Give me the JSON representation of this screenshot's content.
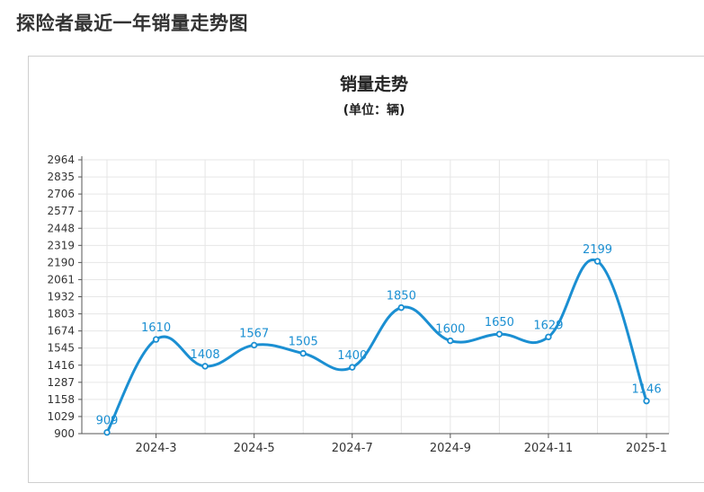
{
  "page": {
    "title": "探险者最近一年销量走势图"
  },
  "chart_data": {
    "type": "line",
    "title": "销量走势",
    "subtitle": "(单位：辆)",
    "x": [
      "2024-2",
      "2024-3",
      "2024-4",
      "2024-5",
      "2024-6",
      "2024-7",
      "2024-8",
      "2024-9",
      "2024-10",
      "2024-11",
      "2024-12",
      "2025-1"
    ],
    "x_tick_labels": [
      "2024-3",
      "2024-5",
      "2024-7",
      "2024-9",
      "2024-11",
      "2025-1"
    ],
    "series": [
      {
        "values": [
          909,
          1610,
          1408,
          1567,
          1505,
          1400,
          1850,
          1600,
          1650,
          1629,
          2199,
          1146
        ]
      }
    ],
    "y_ticks": [
      900,
      1029,
      1158,
      1287,
      1416,
      1545,
      1674,
      1803,
      1932,
      2061,
      2190,
      2319,
      2448,
      2577,
      2706,
      2835,
      2964
    ],
    "ylim": [
      900,
      2964
    ],
    "grid": true,
    "smooth": true,
    "colors": {
      "line": "#1b8fd2",
      "label": "#1b8fd2",
      "grid": "#e6e6e6"
    }
  }
}
